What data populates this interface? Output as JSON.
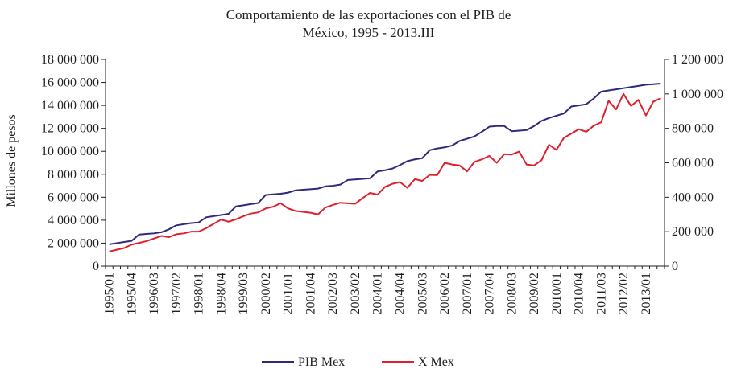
{
  "chart_data": {
    "type": "line",
    "title_lines": [
      "Comportamiento de las exportaciones con el PIB de",
      "México, 1995 - 2013.III"
    ],
    "ylabel": "Millones de pesos",
    "ylim_left": [
      0,
      18000000
    ],
    "ylim_right": [
      0,
      1200000
    ],
    "yticks_left": [
      "0",
      "2 000 000",
      "4 000 000",
      "6 000 000",
      "8 000 000",
      "10 000 000",
      "12 000 000",
      "14 000 000",
      "16 000 000",
      "18 000 000"
    ],
    "yticks_right": [
      "0",
      "200 000",
      "400 000",
      "600 000",
      "800 000",
      "1 000 000",
      "1 200 000"
    ],
    "xtick_labels": [
      "1995/01",
      "1995/04",
      "1996/03",
      "1997/02",
      "1998/01",
      "1998/04",
      "1999/03",
      "2000/02",
      "2001/01",
      "2001/04",
      "2002/03",
      "2003/02",
      "2004/01",
      "2004/04",
      "2005/03",
      "2006/02",
      "2007/01",
      "2007/04",
      "2008/03",
      "2009/02",
      "2010/01",
      "2010/04",
      "2011/03",
      "2012/02",
      "2013/01"
    ],
    "n_points": 75,
    "series": [
      {
        "name": "PIB Mex",
        "axis": "left",
        "color": "#2e2a7a",
        "values": [
          1900000,
          2000000,
          2100000,
          2200000,
          2750000,
          2800000,
          2850000,
          2950000,
          3200000,
          3550000,
          3650000,
          3750000,
          3800000,
          4250000,
          4350000,
          4450000,
          4550000,
          5200000,
          5300000,
          5400000,
          5500000,
          6200000,
          6250000,
          6300000,
          6400000,
          6600000,
          6650000,
          6700000,
          6750000,
          6950000,
          7000000,
          7100000,
          7500000,
          7550000,
          7600000,
          7650000,
          8250000,
          8350000,
          8500000,
          8800000,
          9150000,
          9300000,
          9400000,
          10100000,
          10250000,
          10350000,
          10500000,
          10900000,
          11100000,
          11300000,
          11700000,
          12150000,
          12200000,
          12200000,
          11750000,
          11800000,
          11850000,
          12200000,
          12650000,
          12900000,
          13100000,
          13300000,
          13900000,
          14000000,
          14100000,
          14600000,
          15200000,
          15300000,
          15400000,
          15500000,
          15600000,
          15700000,
          15800000,
          15850000,
          15900000
        ]
      },
      {
        "name": "X Mex",
        "axis": "right",
        "color": "#e0202e",
        "values": [
          85000,
          95000,
          105000,
          125000,
          135000,
          145000,
          160000,
          175000,
          168000,
          185000,
          190000,
          200000,
          200000,
          220000,
          245000,
          270000,
          258000,
          272000,
          290000,
          305000,
          312000,
          335000,
          345000,
          365000,
          335000,
          320000,
          315000,
          310000,
          300000,
          340000,
          355000,
          368000,
          365000,
          362000,
          395000,
          425000,
          415000,
          460000,
          478000,
          488000,
          455000,
          505000,
          495000,
          530000,
          528000,
          600000,
          590000,
          585000,
          550000,
          605000,
          620000,
          640000,
          600000,
          650000,
          648000,
          665000,
          590000,
          585000,
          615000,
          705000,
          675000,
          745000,
          770000,
          795000,
          780000,
          815000,
          835000,
          960000,
          910000,
          1000000,
          930000,
          965000,
          875000,
          955000,
          975000
        ]
      }
    ],
    "legend": [
      "PIB Mex",
      "X Mex"
    ],
    "legend_position": "bottom-center"
  }
}
